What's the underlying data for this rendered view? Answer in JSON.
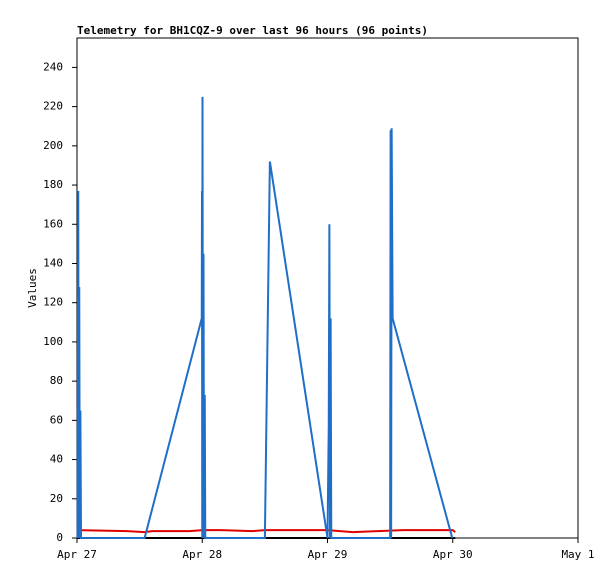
{
  "chart_data": {
    "type": "line",
    "title": "Telemetry for BH1CQZ-9 over last 96 hours (96 points)",
    "y_label": "Values",
    "xlim": [
      0,
      4
    ],
    "xticks": [
      {
        "value": 0,
        "label": "Apr 27"
      },
      {
        "value": 1,
        "label": "Apr 28"
      },
      {
        "value": 2,
        "label": "Apr 29"
      },
      {
        "value": 3,
        "label": "Apr 30"
      },
      {
        "value": 4,
        "label": "May 1"
      }
    ],
    "ylim": [
      0,
      255
    ],
    "yticks": [
      0,
      20,
      40,
      60,
      80,
      100,
      120,
      140,
      160,
      180,
      200,
      220,
      240
    ],
    "grid": false,
    "series": [
      {
        "color": "#000000",
        "x": [
          0,
          3.02
        ],
        "values": [
          0,
          0
        ]
      },
      {
        "color": "#e00000",
        "x": [
          0,
          0.4,
          0.54,
          0.6,
          0.9,
          1.0,
          1.15,
          1.4,
          1.5,
          1.9,
          2.0,
          2.2,
          2.4,
          2.6,
          3.0,
          3.02
        ],
        "values": [
          4,
          3.5,
          3,
          3.5,
          3.5,
          4,
          4,
          3.5,
          4,
          4,
          4,
          3,
          3.5,
          4,
          4,
          3
        ]
      },
      {
        "color": "#1f6fc8",
        "x": [
          0.005,
          0.01,
          0.014,
          0.018,
          0.022,
          0.027,
          0.032,
          0.54,
          0.996,
          0.998,
          1.0,
          1.002,
          1.006,
          1.01,
          1.014,
          1.02,
          1.024,
          1.5,
          1.52,
          1.54,
          2.0,
          2.01,
          2.015,
          2.02,
          2.025,
          2.03,
          2.5,
          2.504,
          2.508,
          2.512,
          2.52,
          2.996
        ],
        "values": [
          0,
          177,
          0,
          128,
          0,
          65,
          0,
          0,
          112,
          177,
          0,
          225,
          0,
          145,
          0,
          73,
          0,
          0,
          97,
          192,
          0,
          57,
          160,
          0,
          112,
          0,
          0,
          208,
          0,
          209,
          112,
          0
        ]
      }
    ]
  }
}
